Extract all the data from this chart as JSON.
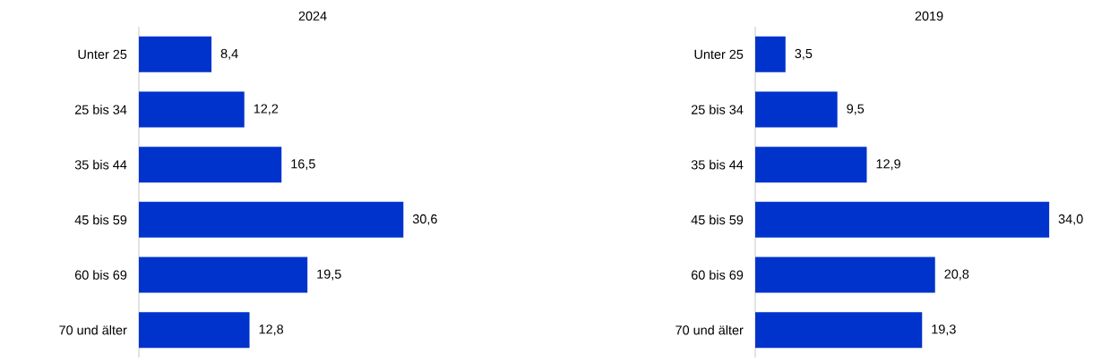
{
  "chart_data": [
    {
      "type": "bar",
      "orientation": "horizontal",
      "title": "2024",
      "categories": [
        "Unter 25",
        "25 bis 34",
        "35 bis 44",
        "45 bis 59",
        "60 bis 69",
        "70 und älter"
      ],
      "values": [
        8.4,
        12.2,
        16.5,
        30.6,
        19.5,
        12.8
      ],
      "value_labels": [
        "8,4",
        "12,2",
        "16,5",
        "30,6",
        "19,5",
        "12,8"
      ],
      "color": "#0033cc",
      "tick_labels": "y"
    },
    {
      "type": "bar",
      "orientation": "horizontal",
      "title": "2019",
      "categories": [
        "Unter 25",
        "25 bis 34",
        "35 bis 44",
        "45 bis 59",
        "60 bis 69",
        "70 und älter"
      ],
      "values": [
        3.5,
        9.5,
        12.9,
        34.0,
        20.8,
        19.3
      ],
      "value_labels": [
        "3,5",
        "9,5",
        "12,9",
        "34,0",
        "20,8",
        "19,3"
      ],
      "color": "#0033cc",
      "tick_labels": "y"
    }
  ]
}
